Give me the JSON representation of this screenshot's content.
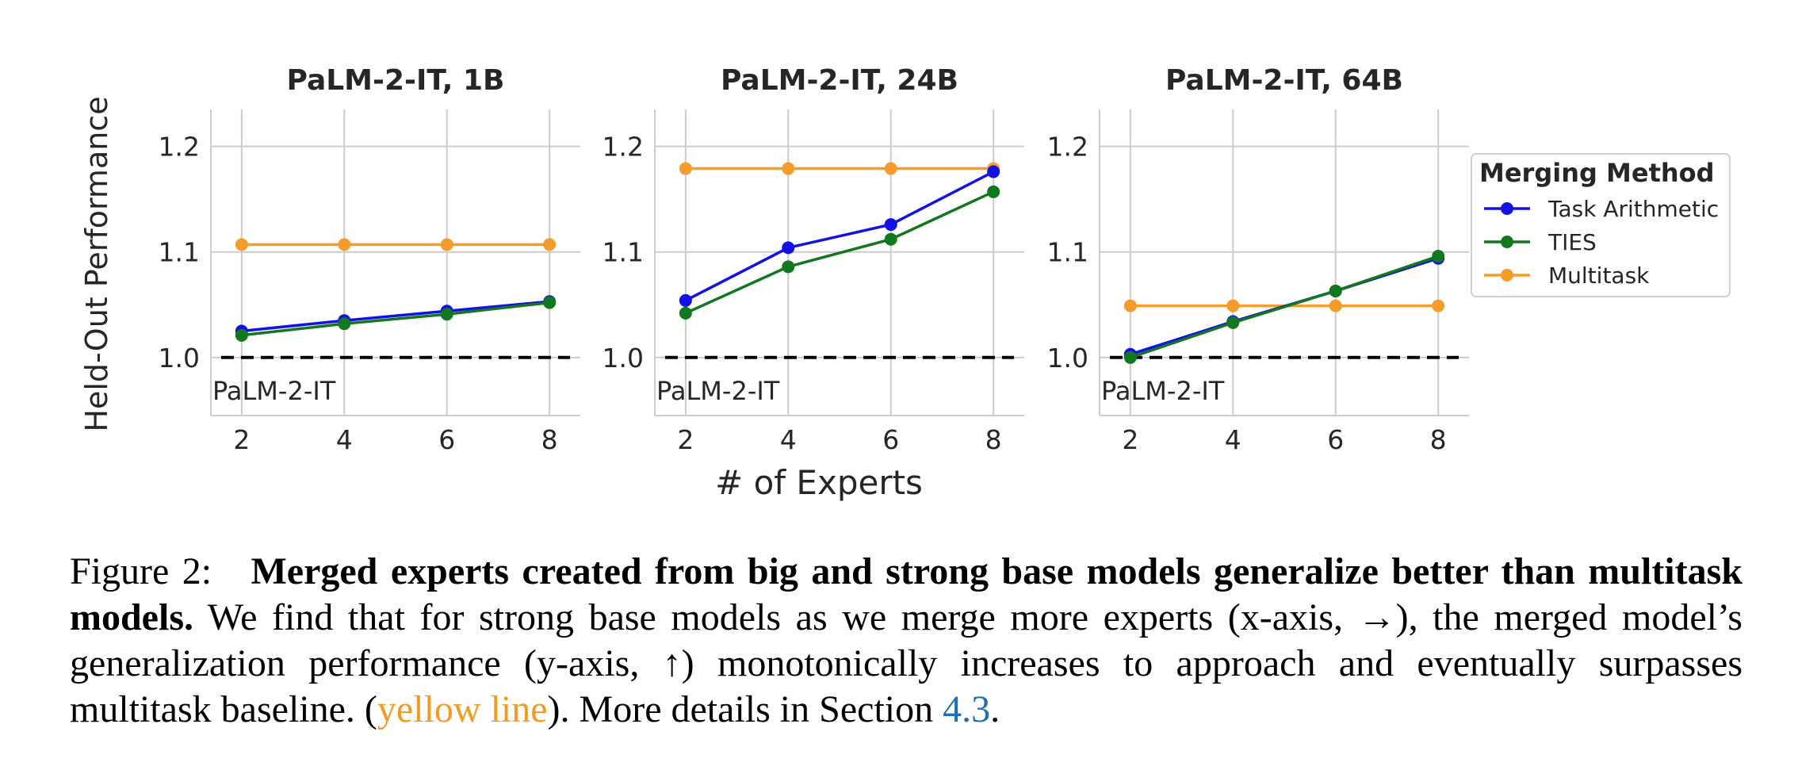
{
  "chart_data": {
    "type": "line",
    "ylabel": "Held-Out Performance",
    "xlabel": "# of Experts",
    "ylim": [
      0.945,
      1.235
    ],
    "xlim": [
      1.4,
      8.6
    ],
    "yticks": [
      "1.0",
      "1.1",
      "1.2"
    ],
    "xticks": [
      "2",
      "4",
      "6",
      "8"
    ],
    "grid": true,
    "baseline": {
      "label": "PaLM-2-IT",
      "value": 1.0,
      "style": "dashed",
      "color": "#000000"
    },
    "legend": {
      "title": "Merging Method",
      "placement": "outside-right",
      "entries": [
        {
          "name": "Task Arithmetic",
          "color": "#1212e6"
        },
        {
          "name": "TIES",
          "color": "#12781e"
        },
        {
          "name": "Multitask",
          "color": "#f59c2b"
        }
      ]
    },
    "panels": [
      {
        "title": "PaLM-2-IT, 1B",
        "x": [
          2,
          4,
          6,
          8
        ],
        "series": [
          {
            "name": "Multitask",
            "color": "#f59c2b",
            "values": [
              1.107,
              1.107,
              1.107,
              1.107
            ]
          },
          {
            "name": "Task Arithmetic",
            "color": "#1212e6",
            "values": [
              1.025,
              1.035,
              1.044,
              1.053
            ]
          },
          {
            "name": "TIES",
            "color": "#12781e",
            "values": [
              1.021,
              1.032,
              1.041,
              1.052
            ]
          }
        ]
      },
      {
        "title": "PaLM-2-IT, 24B",
        "x": [
          2,
          4,
          6,
          8
        ],
        "series": [
          {
            "name": "Multitask",
            "color": "#f59c2b",
            "values": [
              1.179,
              1.179,
              1.179,
              1.179
            ]
          },
          {
            "name": "Task Arithmetic",
            "color": "#1212e6",
            "values": [
              1.054,
              1.104,
              1.126,
              1.176
            ]
          },
          {
            "name": "TIES",
            "color": "#12781e",
            "values": [
              1.042,
              1.086,
              1.112,
              1.157
            ]
          }
        ]
      },
      {
        "title": "PaLM-2-IT, 64B",
        "x": [
          2,
          4,
          6,
          8
        ],
        "series": [
          {
            "name": "Multitask",
            "color": "#f59c2b",
            "values": [
              1.049,
              1.049,
              1.049,
              1.049
            ]
          },
          {
            "name": "Task Arithmetic",
            "color": "#1212e6",
            "values": [
              1.003,
              1.034,
              1.063,
              1.094
            ]
          },
          {
            "name": "TIES",
            "color": "#12781e",
            "values": [
              1.0,
              1.033,
              1.063,
              1.096
            ]
          }
        ]
      }
    ]
  },
  "caption": {
    "label": "Figure 2:",
    "bold": "Merged experts created from big and strong base models generalize better than multitask models.",
    "text1": "We find that for strong base models as we merge more experts (x-axis, →), the merged model’s generalization performance (y-axis, ↑) monotonically increases to approach and eventually surpasses multitask baseline. (",
    "highlight": "yellow line",
    "text2": "). More details in Section ",
    "link": "4.3",
    "text3": "."
  }
}
